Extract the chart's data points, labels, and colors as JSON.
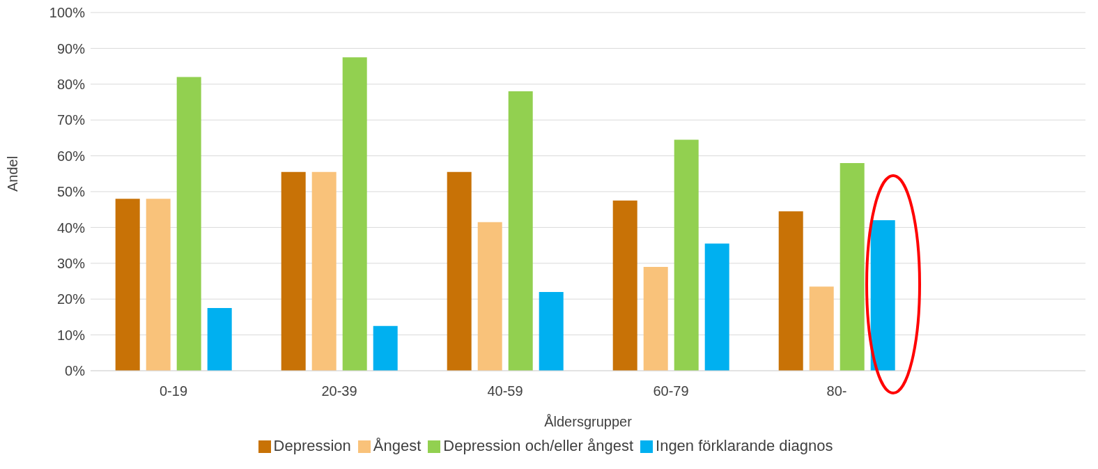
{
  "chart_data": {
    "type": "bar",
    "xlabel": "Åldersgrupper",
    "ylabel": "Andel",
    "categories": [
      "0-19",
      "20-39",
      "40-59",
      "60-79",
      "80-",
      null
    ],
    "series": [
      {
        "name": "Depression",
        "color": "#c87206",
        "values": [
          48,
          55.5,
          55.5,
          47.5,
          44.5,
          null
        ]
      },
      {
        "name": "Ångest",
        "color": "#f9c27a",
        "values": [
          48,
          55.5,
          41.5,
          29,
          23.5,
          null
        ]
      },
      {
        "name": "Depression och/eller ångest",
        "color": "#92d050",
        "values": [
          82,
          87.5,
          78,
          64.5,
          58,
          null
        ]
      },
      {
        "name": "Ingen förklarande diagnos",
        "color": "#00b0f0",
        "values": [
          17.5,
          12.5,
          22,
          35.5,
          42,
          null
        ]
      }
    ],
    "ylim": [
      0,
      100
    ],
    "yticks": [
      {
        "value": 0,
        "label": "0%"
      },
      {
        "value": 10,
        "label": "10%"
      },
      {
        "value": 20,
        "label": "20%"
      },
      {
        "value": 30,
        "label": "30%"
      },
      {
        "value": 40,
        "label": "40%"
      },
      {
        "value": 50,
        "label": "50%"
      },
      {
        "value": 60,
        "label": "60%"
      },
      {
        "value": 70,
        "label": "70%"
      },
      {
        "value": 80,
        "label": "80%"
      },
      {
        "value": 90,
        "label": "90%"
      },
      {
        "value": 100,
        "label": "100%"
      }
    ],
    "grid": "y",
    "legend": "bottom"
  }
}
